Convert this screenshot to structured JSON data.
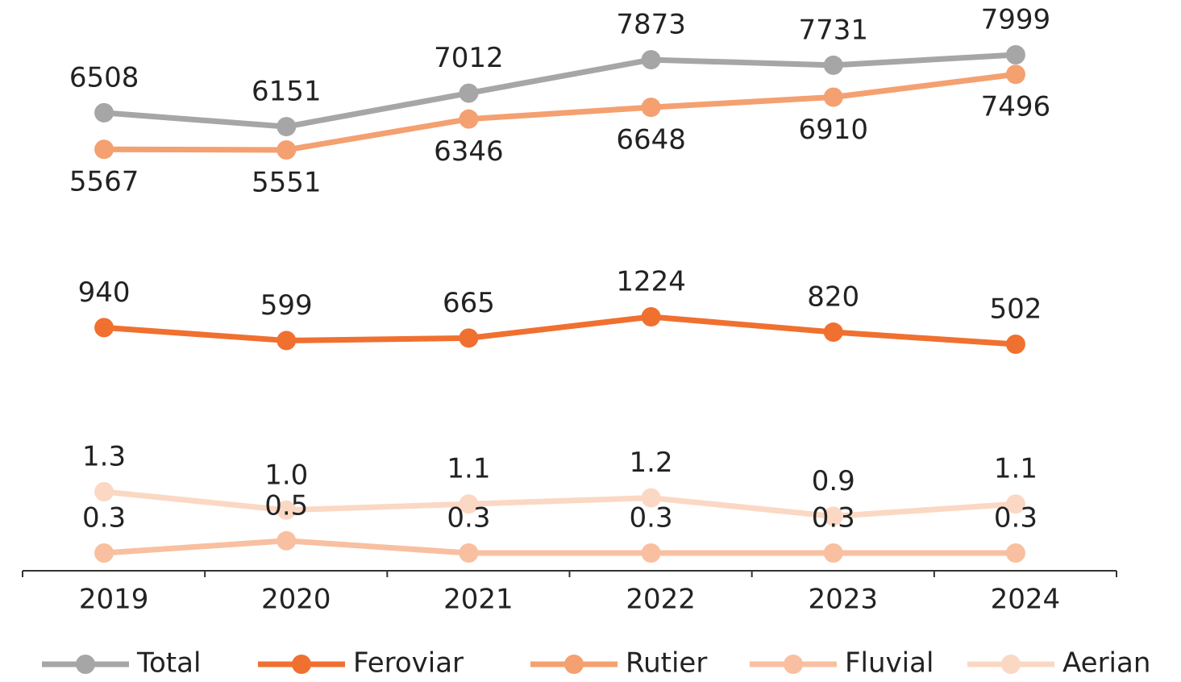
{
  "chart_data": {
    "type": "line",
    "categories": [
      "2019",
      "2020",
      "2021",
      "2022",
      "2023",
      "2024"
    ],
    "series": [
      {
        "name": "Total",
        "color": "#a6a6a6",
        "values": [
          6508,
          6151,
          7012,
          7873,
          7731,
          7999
        ]
      },
      {
        "name": "Feroviar",
        "color": "#f07030",
        "values": [
          940,
          599,
          665,
          1224,
          820,
          502
        ]
      },
      {
        "name": "Rutier",
        "color": "#f4a070",
        "values": [
          5567,
          5551,
          6346,
          6648,
          6910,
          7496
        ]
      },
      {
        "name": "Fluvial",
        "color": "#f8c0a0",
        "values": [
          0.3,
          0.5,
          0.3,
          0.3,
          0.3,
          0.3
        ]
      },
      {
        "name": "Aerian",
        "color": "#fbd8c4",
        "values": [
          1.3,
          1.0,
          1.1,
          1.2,
          0.9,
          1.1
        ],
        "value_labels": [
          "1.3",
          "1.0",
          "1.1",
          "1.2",
          "0.9",
          "1.1"
        ]
      }
    ]
  }
}
